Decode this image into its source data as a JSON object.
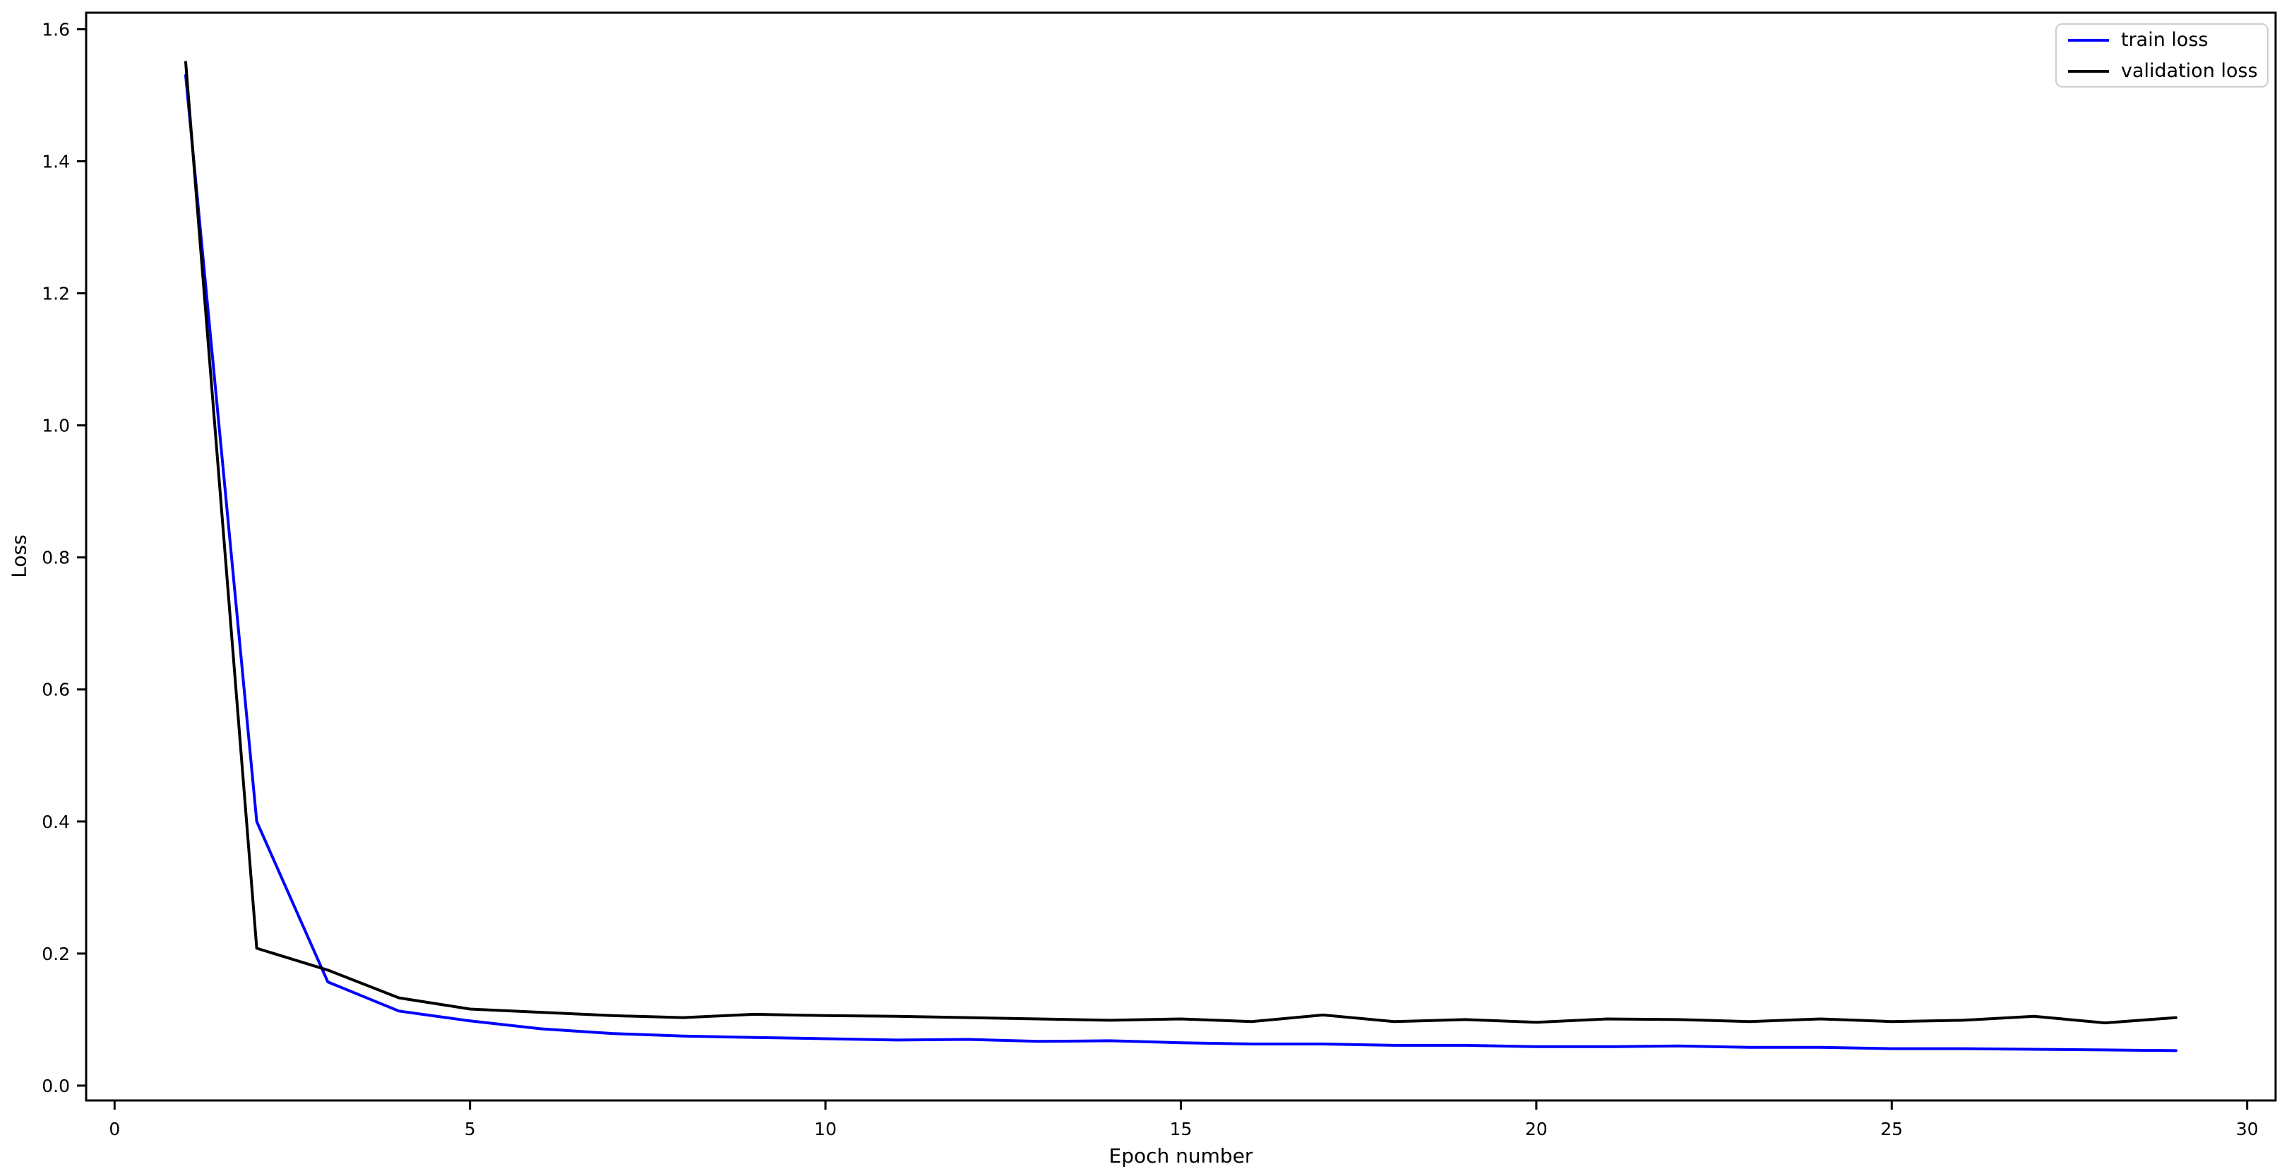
{
  "chart_data": {
    "type": "line",
    "title": "",
    "xlabel": "Epoch number",
    "ylabel": "Loss",
    "grid": false,
    "background_color": "#ffffff",
    "x": [
      1,
      2,
      3,
      4,
      5,
      6,
      7,
      8,
      9,
      10,
      11,
      12,
      13,
      14,
      15,
      16,
      17,
      18,
      19,
      20,
      21,
      22,
      23,
      24,
      25,
      26,
      27,
      28,
      29
    ],
    "series": [
      {
        "name": "train loss",
        "color": "#0000ff",
        "values": [
          1.53,
          0.4,
          0.157,
          0.113,
          0.098,
          0.086,
          0.079,
          0.075,
          0.073,
          0.071,
          0.069,
          0.07,
          0.067,
          0.068,
          0.065,
          0.063,
          0.063,
          0.061,
          0.061,
          0.059,
          0.059,
          0.06,
          0.058,
          0.058,
          0.056,
          0.056,
          0.055,
          0.054,
          0.053
        ]
      },
      {
        "name": "validation loss",
        "color": "#000000",
        "values": [
          1.55,
          0.208,
          0.175,
          0.133,
          0.116,
          0.111,
          0.106,
          0.103,
          0.108,
          0.106,
          0.105,
          0.103,
          0.101,
          0.099,
          0.101,
          0.097,
          0.107,
          0.097,
          0.1,
          0.096,
          0.101,
          0.1,
          0.097,
          0.101,
          0.097,
          0.099,
          0.105,
          0.095,
          0.103
        ]
      }
    ],
    "xticks": [
      0,
      5,
      10,
      15,
      20,
      25,
      30
    ],
    "yticks": [
      0.0,
      0.2,
      0.4,
      0.6,
      0.8,
      1.0,
      1.2,
      1.4,
      1.6
    ],
    "xlim": [
      -0.4,
      30.4
    ],
    "ylim": [
      -0.0225,
      1.625
    ],
    "legend": {
      "position": "upper right",
      "entries": [
        {
          "label": "train loss",
          "color": "#0000ff"
        },
        {
          "label": "validation loss",
          "color": "#000000"
        }
      ]
    },
    "axis_color": "#000000",
    "tick_label_fontsize": 25,
    "axis_label_fontsize": 28
  }
}
